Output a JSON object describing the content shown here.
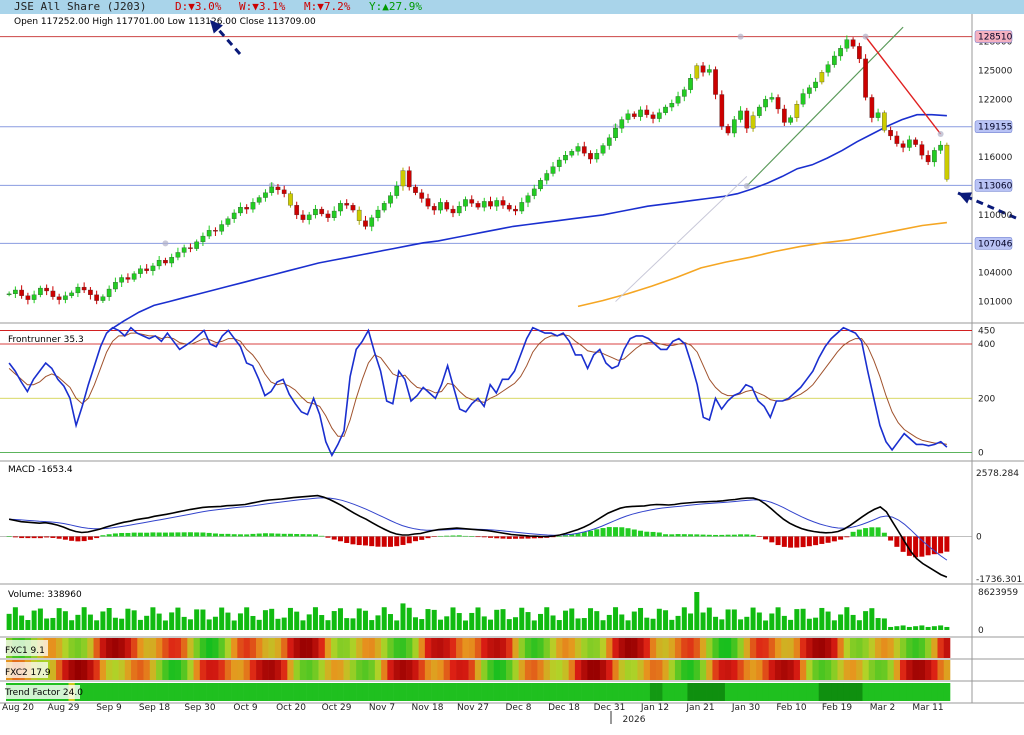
{
  "header": {
    "title": "JSE All Share (J203)",
    "daily": "D:▼3.0%",
    "weekly": "W:▼3.1%",
    "monthly": "M:▼7.2%",
    "yearly": "Y:▲27.9%"
  },
  "ohlc": "Open 117252.00  High 117701.00  Low 113126.00 Close 113709.00",
  "colors": {
    "up": "#22cc22",
    "down": "#cc0000",
    "neutral": "#cccc00",
    "ma50": "#1a2fcf",
    "ma200": "#f5a623",
    "front": "#1a2fcf",
    "front_sig": "#a0522d",
    "macd": "#000000",
    "macd_sig": "#3344cc"
  },
  "chart_data": [
    {
      "type": "candlestick",
      "title": "JSE All Share (J203)",
      "y_ticks": [
        101000,
        104000,
        107000,
        110000,
        113000,
        116000,
        119000,
        122000,
        125000,
        128000
      ],
      "ylim": [
        99500,
        129200
      ],
      "price_labels": [
        "128510",
        "119155",
        "113060",
        "107046"
      ],
      "x_labels": [
        "Aug 20",
        "Aug 29",
        "Sep 9",
        "Sep 18",
        "Sep 30",
        "Oct 9",
        "Oct 20",
        "Oct 29",
        "Nov 7",
        "Nov 18",
        "Nov 27",
        "Dec 8",
        "Dec 18",
        "Dec 31",
        "Jan 12",
        "Jan 21",
        "Jan 30",
        "Feb 10",
        "Feb 19",
        "Mar 2",
        "Mar 11"
      ],
      "year_label": "2026",
      "closes": [
        101800,
        102200,
        101600,
        101200,
        101700,
        102400,
        102100,
        101500,
        101200,
        101600,
        101900,
        102500,
        102200,
        101700,
        101100,
        101500,
        102300,
        103000,
        103500,
        103300,
        103900,
        104400,
        104200,
        104700,
        105300,
        105000,
        105600,
        106100,
        106600,
        106500,
        107200,
        107800,
        108400,
        108300,
        109000,
        109600,
        110200,
        110800,
        110600,
        111300,
        111800,
        112300,
        112900,
        112600,
        112200,
        111000,
        110000,
        109500,
        110000,
        110600,
        110100,
        109700,
        110400,
        111200,
        111000,
        110500,
        109400,
        108800,
        109700,
        110500,
        111200,
        112000,
        113000,
        114600,
        112900,
        112300,
        111700,
        110900,
        110500,
        111300,
        110600,
        110200,
        110900,
        111600,
        111200,
        110800,
        111400,
        110900,
        111500,
        111000,
        110600,
        110400,
        111300,
        112000,
        112700,
        113600,
        114300,
        115000,
        115700,
        116200,
        116600,
        117100,
        116400,
        115800,
        116400,
        117200,
        118000,
        119000,
        119900,
        120500,
        120200,
        120900,
        120400,
        120000,
        120600,
        121200,
        121600,
        122300,
        123000,
        124200,
        125500,
        124800,
        125100,
        122500,
        119200,
        118500,
        119900,
        120800,
        119000,
        120300,
        121200,
        122000,
        122200,
        121000,
        119600,
        120100,
        121500,
        122600,
        123200,
        123800,
        124800,
        125600,
        126500,
        127300,
        128200,
        127500,
        126200,
        122200,
        120100,
        120600,
        118800,
        118200,
        117400,
        117000,
        117800,
        117300,
        116200,
        115500,
        116700,
        117250,
        113700
      ],
      "ma50": [
        98000,
        99000,
        99900,
        100600,
        101000,
        101400,
        101800,
        102200,
        102600,
        103000,
        103400,
        103800,
        104200,
        104600,
        105000,
        105300,
        105600,
        105900,
        106200,
        106500,
        106800,
        107100,
        107300,
        107600,
        107900,
        108200,
        108500,
        108800,
        109000,
        109200,
        109400,
        109600,
        109800,
        110000,
        110300,
        110600,
        110900,
        111100,
        111300,
        111500,
        111700,
        111900,
        112200,
        112700,
        113300,
        114000,
        114800,
        115200,
        115900,
        116700,
        117600,
        118400,
        119200,
        119900,
        120400,
        120400,
        120300
      ],
      "ma200": [
        100500,
        101100,
        101800,
        102600,
        103500,
        104500,
        105100,
        105600,
        106200,
        106700,
        107100,
        107400,
        107900,
        108400,
        108900,
        109200
      ]
    },
    {
      "type": "line",
      "name": "Frontrunner",
      "title": "Frontrunner 35.3",
      "y_ticks": [
        0,
        200,
        400,
        450
      ],
      "ylim": [
        -20,
        470
      ],
      "values": [
        330,
        300,
        260,
        225,
        270,
        300,
        330,
        310,
        270,
        245,
        200,
        100,
        170,
        250,
        320,
        390,
        440,
        460,
        450,
        430,
        460,
        440,
        430,
        420,
        430,
        410,
        440,
        410,
        380,
        395,
        410,
        430,
        450,
        400,
        390,
        430,
        450,
        420,
        390,
        330,
        320,
        270,
        210,
        225,
        260,
        270,
        215,
        180,
        150,
        140,
        200,
        140,
        40,
        -10,
        30,
        80,
        280,
        380,
        410,
        450,
        370,
        300,
        190,
        180,
        300,
        270,
        190,
        210,
        240,
        220,
        200,
        250,
        320,
        240,
        160,
        150,
        180,
        200,
        170,
        250,
        220,
        270,
        270,
        300,
        360,
        420,
        460,
        450,
        440,
        440,
        430,
        440,
        410,
        360,
        360,
        310,
        360,
        380,
        330,
        310,
        320,
        380,
        420,
        430,
        430,
        420,
        400,
        380,
        380,
        410,
        420,
        400,
        330,
        250,
        130,
        120,
        200,
        160,
        190,
        210,
        220,
        250,
        240,
        190,
        170,
        130,
        190,
        190,
        200,
        220,
        240,
        270,
        300,
        350,
        390,
        420,
        440,
        460,
        450,
        440,
        410,
        300,
        200,
        100,
        40,
        10,
        40,
        70,
        50,
        30,
        30,
        25,
        30,
        40,
        20
      ],
      "signal": [
        310,
        290,
        270,
        250,
        250,
        260,
        280,
        290,
        280,
        260,
        240,
        200,
        180,
        200,
        250,
        310,
        370,
        410,
        430,
        430,
        440,
        440,
        435,
        430,
        430,
        420,
        425,
        420,
        405,
        400,
        400,
        410,
        420,
        415,
        405,
        410,
        420,
        420,
        410,
        380,
        360,
        330,
        290,
        260,
        250,
        255,
        245,
        230,
        205,
        185,
        180,
        170,
        135,
        90,
        60,
        60,
        120,
        200,
        270,
        330,
        360,
        350,
        320,
        290,
        280,
        285,
        260,
        240,
        235,
        230,
        220,
        225,
        255,
        250,
        225,
        205,
        195,
        190,
        185,
        200,
        210,
        225,
        240,
        255,
        280,
        320,
        370,
        400,
        420,
        430,
        430,
        435,
        430,
        410,
        395,
        375,
        370,
        370,
        360,
        350,
        340,
        345,
        365,
        385,
        400,
        405,
        405,
        400,
        395,
        395,
        400,
        405,
        395,
        370,
        320,
        270,
        240,
        220,
        210,
        210,
        215,
        225,
        230,
        220,
        210,
        195,
        190,
        190,
        195,
        205,
        215,
        230,
        250,
        280,
        310,
        340,
        370,
        395,
        410,
        420,
        420,
        390,
        340,
        280,
        210,
        150,
        110,
        85,
        70,
        55,
        45,
        40,
        35,
        35,
        30
      ]
    },
    {
      "type": "line",
      "name": "MACD",
      "title": "MACD -1653.4",
      "y_ticks": [
        2578.284,
        0,
        -1736.301
      ],
      "ylim": [
        -1850,
        2700
      ],
      "values": [
        700,
        650,
        600,
        580,
        560,
        540,
        560,
        520,
        460,
        380,
        280,
        200,
        160,
        180,
        240,
        300,
        380,
        450,
        520,
        580,
        620,
        680,
        720,
        760,
        820,
        860,
        900,
        950,
        1000,
        1050,
        1100,
        1140,
        1180,
        1200,
        1210,
        1220,
        1250,
        1260,
        1280,
        1300,
        1350,
        1400,
        1450,
        1480,
        1500,
        1520,
        1550,
        1580,
        1600,
        1620,
        1640,
        1660,
        1600,
        1500,
        1380,
        1250,
        1100,
        950,
        820,
        700,
        560,
        420,
        300,
        180,
        100,
        60,
        60,
        100,
        120,
        180,
        240,
        280,
        300,
        320,
        340,
        320,
        300,
        280,
        260,
        240,
        200,
        160,
        120,
        80,
        60,
        40,
        20,
        10,
        0,
        0,
        20,
        60,
        120,
        200,
        280,
        380,
        500,
        650,
        800,
        950,
        1050,
        1150,
        1200,
        1220,
        1230,
        1240,
        1280,
        1300,
        1290,
        1280,
        1300,
        1340,
        1360,
        1380,
        1400,
        1410,
        1420,
        1430,
        1450,
        1480,
        1500,
        1540,
        1560,
        1560,
        1480,
        1320,
        1120,
        900,
        700,
        540,
        420,
        320,
        250,
        200,
        170,
        150,
        160,
        200,
        300,
        450,
        620,
        800,
        960,
        1100,
        1200,
        1000,
        600,
        200,
        -200,
        -600,
        -900,
        -1100,
        -1250,
        -1400,
        -1550,
        -1650
      ]
    },
    {
      "type": "bar",
      "name": "Volume",
      "title": "Volume: 338960",
      "y_ticks": [
        8623959,
        0
      ],
      "ylim": [
        0,
        8623959
      ]
    },
    {
      "type": "heatmap",
      "name": "FXC1",
      "title": "FXC1 9.1"
    },
    {
      "type": "heatmap",
      "name": "FXC2",
      "title": "FXC2 17.9"
    },
    {
      "type": "heatmap",
      "name": "Trend Factor",
      "title": "Trend Factor 24.0"
    }
  ]
}
